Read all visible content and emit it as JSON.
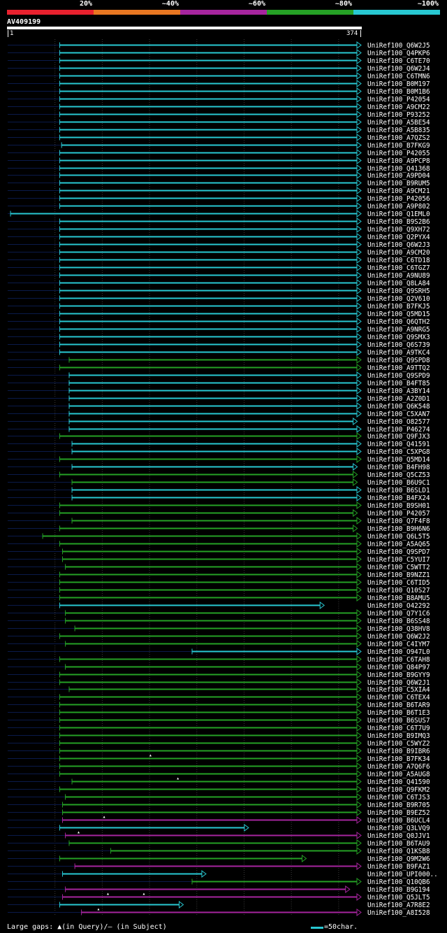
{
  "legend": [
    {
      "label": "20%",
      "color": "#e8212e"
    },
    {
      "label": "~40%",
      "color": "#e87722"
    },
    {
      "label": "~60%",
      "color": "#a6259e"
    },
    {
      "label": "~80%",
      "color": "#25a125"
    },
    {
      "label": "~100%",
      "color": "#28c8d2"
    }
  ],
  "query": {
    "name": "AV409199",
    "start": "1",
    "end": "374"
  },
  "colors": {
    "cyan": "#28c8d2",
    "green": "#25a125",
    "magenta": "#a6259e",
    "navy": "#0a1a4a",
    "grid": "#3a3a3a"
  },
  "chart_data": {
    "type": "alignment",
    "query_length": 374,
    "hits": [
      {
        "name": "UniRef100_Q6W2J5",
        "start": 56,
        "end": 374,
        "identity": "cyan"
      },
      {
        "name": "UniRef100_Q4PKP6",
        "start": 56,
        "end": 374,
        "identity": "cyan"
      },
      {
        "name": "UniRef100_C6TE70",
        "start": 56,
        "end": 374,
        "identity": "cyan"
      },
      {
        "name": "UniRef100_Q6W2J4",
        "start": 56,
        "end": 374,
        "identity": "cyan"
      },
      {
        "name": "UniRef100_C6TMN6",
        "start": 56,
        "end": 374,
        "identity": "cyan"
      },
      {
        "name": "UniRef100_B0M197",
        "start": 56,
        "end": 374,
        "identity": "cyan"
      },
      {
        "name": "UniRef100_B0M1B6",
        "start": 56,
        "end": 374,
        "identity": "cyan"
      },
      {
        "name": "UniRef100_P42054",
        "start": 56,
        "end": 374,
        "identity": "cyan"
      },
      {
        "name": "UniRef100_A9CM22",
        "start": 56,
        "end": 374,
        "identity": "cyan"
      },
      {
        "name": "UniRef100_P93252",
        "start": 56,
        "end": 374,
        "identity": "cyan"
      },
      {
        "name": "UniRef100_A5BE54",
        "start": 56,
        "end": 374,
        "identity": "cyan"
      },
      {
        "name": "UniRef100_A5B835",
        "start": 56,
        "end": 374,
        "identity": "cyan"
      },
      {
        "name": "UniRef100_A7QZS2",
        "start": 56,
        "end": 374,
        "identity": "cyan"
      },
      {
        "name": "UniRef100_B7FKG9",
        "start": 58,
        "end": 374,
        "identity": "cyan"
      },
      {
        "name": "UniRef100_P42055",
        "start": 56,
        "end": 374,
        "identity": "cyan"
      },
      {
        "name": "UniRef100_A9PCP8",
        "start": 56,
        "end": 374,
        "identity": "cyan"
      },
      {
        "name": "UniRef100_Q41368",
        "start": 56,
        "end": 374,
        "identity": "cyan"
      },
      {
        "name": "UniRef100_A9PD04",
        "start": 56,
        "end": 374,
        "identity": "cyan"
      },
      {
        "name": "UniRef100_B9RUM5",
        "start": 56,
        "end": 374,
        "identity": "cyan"
      },
      {
        "name": "UniRef100_A9CM21",
        "start": 56,
        "end": 374,
        "identity": "cyan"
      },
      {
        "name": "UniRef100_P42056",
        "start": 56,
        "end": 374,
        "identity": "cyan"
      },
      {
        "name": "UniRef100_A9P802",
        "start": 56,
        "end": 374,
        "identity": "cyan"
      },
      {
        "name": "UniRef100_Q1EML0",
        "start": 4,
        "end": 374,
        "identity": "cyan"
      },
      {
        "name": "UniRef100_B9S2B6",
        "start": 56,
        "end": 374,
        "identity": "cyan"
      },
      {
        "name": "UniRef100_Q9XH72",
        "start": 56,
        "end": 374,
        "identity": "cyan"
      },
      {
        "name": "UniRef100_Q2PYX4",
        "start": 56,
        "end": 374,
        "identity": "cyan"
      },
      {
        "name": "UniRef100_Q6W2J3",
        "start": 56,
        "end": 374,
        "identity": "cyan"
      },
      {
        "name": "UniRef100_A9CM20",
        "start": 56,
        "end": 374,
        "identity": "cyan"
      },
      {
        "name": "UniRef100_C6TD18",
        "start": 56,
        "end": 374,
        "identity": "cyan"
      },
      {
        "name": "UniRef100_C6TGZ7",
        "start": 56,
        "end": 374,
        "identity": "cyan"
      },
      {
        "name": "UniRef100_A9NU89",
        "start": 56,
        "end": 374,
        "identity": "cyan"
      },
      {
        "name": "UniRef100_Q8LA84",
        "start": 56,
        "end": 374,
        "identity": "cyan"
      },
      {
        "name": "UniRef100_Q9SRH5",
        "start": 56,
        "end": 374,
        "identity": "cyan"
      },
      {
        "name": "UniRef100_Q2V610",
        "start": 56,
        "end": 374,
        "identity": "cyan"
      },
      {
        "name": "UniRef100_B7FKJ5",
        "start": 56,
        "end": 374,
        "identity": "cyan"
      },
      {
        "name": "UniRef100_Q5MD15",
        "start": 56,
        "end": 374,
        "identity": "cyan"
      },
      {
        "name": "UniRef100_Q6QTH2",
        "start": 56,
        "end": 374,
        "identity": "cyan"
      },
      {
        "name": "UniRef100_A9NRG5",
        "start": 56,
        "end": 374,
        "identity": "cyan"
      },
      {
        "name": "UniRef100_Q9SMX3",
        "start": 56,
        "end": 374,
        "identity": "cyan"
      },
      {
        "name": "UniRef100_Q6S739",
        "start": 56,
        "end": 374,
        "identity": "cyan"
      },
      {
        "name": "UniRef100_A9TKC4",
        "start": 56,
        "end": 374,
        "identity": "cyan"
      },
      {
        "name": "UniRef100_Q9SPD8",
        "start": 66,
        "end": 374,
        "identity": "green"
      },
      {
        "name": "UniRef100_A9TTQ2",
        "start": 56,
        "end": 374,
        "identity": "green"
      },
      {
        "name": "UniRef100_Q9SPD9",
        "start": 66,
        "end": 374,
        "identity": "cyan"
      },
      {
        "name": "UniRef100_B4FT85",
        "start": 66,
        "end": 374,
        "identity": "cyan"
      },
      {
        "name": "UniRef100_A3BY14",
        "start": 66,
        "end": 374,
        "identity": "cyan"
      },
      {
        "name": "UniRef100_A2Z0D1",
        "start": 66,
        "end": 374,
        "identity": "cyan"
      },
      {
        "name": "UniRef100_Q6K548",
        "start": 66,
        "end": 374,
        "identity": "cyan"
      },
      {
        "name": "UniRef100_C5XAN7",
        "start": 66,
        "end": 374,
        "identity": "cyan"
      },
      {
        "name": "UniRef100_O82577",
        "start": 66,
        "end": 370,
        "identity": "cyan"
      },
      {
        "name": "UniRef100_P46274",
        "start": 66,
        "end": 374,
        "identity": "cyan"
      },
      {
        "name": "UniRef100_Q9FJX3",
        "start": 56,
        "end": 374,
        "identity": "green"
      },
      {
        "name": "UniRef100_Q41591",
        "start": 69,
        "end": 374,
        "identity": "cyan"
      },
      {
        "name": "UniRef100_C5XPG8",
        "start": 69,
        "end": 374,
        "identity": "cyan"
      },
      {
        "name": "UniRef100_Q5MD14",
        "start": 56,
        "end": 374,
        "identity": "green"
      },
      {
        "name": "UniRef100_B4FH98",
        "start": 69,
        "end": 370,
        "identity": "cyan"
      },
      {
        "name": "UniRef100_Q5CZ53",
        "start": 56,
        "end": 370,
        "identity": "green"
      },
      {
        "name": "UniRef100_B6U9C1",
        "start": 69,
        "end": 370,
        "identity": "green"
      },
      {
        "name": "UniRef100_B6SLD1",
        "start": 69,
        "end": 374,
        "identity": "cyan"
      },
      {
        "name": "UniRef100_B4FX24",
        "start": 69,
        "end": 374,
        "identity": "cyan"
      },
      {
        "name": "UniRef100_B9SH01",
        "start": 56,
        "end": 374,
        "identity": "green"
      },
      {
        "name": "UniRef100_P42057",
        "start": 56,
        "end": 370,
        "identity": "green"
      },
      {
        "name": "UniRef100_Q7F4F8",
        "start": 69,
        "end": 374,
        "identity": "green"
      },
      {
        "name": "UniRef100_B9H6N6",
        "start": 56,
        "end": 370,
        "identity": "green"
      },
      {
        "name": "UniRef100_Q6L5T5",
        "start": 38,
        "end": 374,
        "identity": "green"
      },
      {
        "name": "UniRef100_A5AQ65",
        "start": 56,
        "end": 374,
        "identity": "green"
      },
      {
        "name": "UniRef100_Q9SPD7",
        "start": 59,
        "end": 374,
        "identity": "green"
      },
      {
        "name": "UniRef100_C5YUI7",
        "start": 59,
        "end": 374,
        "identity": "green"
      },
      {
        "name": "UniRef100_C5WTT2",
        "start": 62,
        "end": 374,
        "identity": "green"
      },
      {
        "name": "UniRef100_B9NZZ1",
        "start": 56,
        "end": 374,
        "identity": "green"
      },
      {
        "name": "UniRef100_C6TID5",
        "start": 56,
        "end": 374,
        "identity": "green"
      },
      {
        "name": "UniRef100_Q10S27",
        "start": 56,
        "end": 374,
        "identity": "green"
      },
      {
        "name": "UniRef100_B8AMU5",
        "start": 56,
        "end": 374,
        "identity": "green"
      },
      {
        "name": "UniRef100_O42292",
        "start": 56,
        "end": 335,
        "identity": "cyan"
      },
      {
        "name": "UniRef100_Q7Y1C6",
        "start": 62,
        "end": 374,
        "identity": "green"
      },
      {
        "name": "UniRef100_B6SS48",
        "start": 62,
        "end": 374,
        "identity": "green"
      },
      {
        "name": "UniRef100_Q38HV8",
        "start": 72,
        "end": 374,
        "identity": "green"
      },
      {
        "name": "UniRef100_Q6W2J2",
        "start": 56,
        "end": 374,
        "identity": "green"
      },
      {
        "name": "UniRef100_C4IYM7",
        "start": 62,
        "end": 374,
        "identity": "green"
      },
      {
        "name": "UniRef100_O947L0",
        "start": 196,
        "end": 374,
        "identity": "cyan"
      },
      {
        "name": "UniRef100_C6TAH8",
        "start": 56,
        "end": 374,
        "identity": "green"
      },
      {
        "name": "UniRef100_Q84P97",
        "start": 62,
        "end": 374,
        "identity": "green"
      },
      {
        "name": "UniRef100_B9GYY9",
        "start": 56,
        "end": 374,
        "identity": "green"
      },
      {
        "name": "UniRef100_Q6W2J1",
        "start": 56,
        "end": 374,
        "identity": "green"
      },
      {
        "name": "UniRef100_C5XIA4",
        "start": 66,
        "end": 374,
        "identity": "green"
      },
      {
        "name": "UniRef100_C6TEX4",
        "start": 56,
        "end": 374,
        "identity": "green"
      },
      {
        "name": "UniRef100_B6TAR9",
        "start": 56,
        "end": 374,
        "identity": "green"
      },
      {
        "name": "UniRef100_B6T1E3",
        "start": 56,
        "end": 374,
        "identity": "green"
      },
      {
        "name": "UniRef100_B6SUS7",
        "start": 56,
        "end": 374,
        "identity": "green"
      },
      {
        "name": "UniRef100_C6T7U9",
        "start": 56,
        "end": 374,
        "identity": "green"
      },
      {
        "name": "UniRef100_B9IMQ3",
        "start": 56,
        "end": 374,
        "identity": "green"
      },
      {
        "name": "UniRef100_C5WYZ2",
        "start": 56,
        "end": 374,
        "identity": "green"
      },
      {
        "name": "UniRef100_B9IBR6",
        "start": 56,
        "end": 374,
        "identity": "green"
      },
      {
        "name": "UniRef100_B7FK34",
        "start": 56,
        "end": 374,
        "identity": "green",
        "gap_query": 152
      },
      {
        "name": "UniRef100_A7Q6F6",
        "start": 56,
        "end": 374,
        "identity": "green"
      },
      {
        "name": "UniRef100_A5AUG8",
        "start": 56,
        "end": 374,
        "identity": "green"
      },
      {
        "name": "UniRef100_Q41590",
        "start": 69,
        "end": 374,
        "identity": "green",
        "gap_query": 181
      },
      {
        "name": "UniRef100_Q9FKM2",
        "start": 56,
        "end": 374,
        "identity": "green"
      },
      {
        "name": "UniRef100_C6TJS3",
        "start": 62,
        "end": 374,
        "identity": "green"
      },
      {
        "name": "UniRef100_B9R705",
        "start": 59,
        "end": 374,
        "identity": "green"
      },
      {
        "name": "UniRef100_B9EZ52",
        "start": 59,
        "end": 374,
        "identity": "green"
      },
      {
        "name": "UniRef100_B6UCL4",
        "start": 59,
        "end": 374,
        "identity": "magenta",
        "gap_query": 103
      },
      {
        "name": "UniRef100_Q3LVQ9",
        "start": 56,
        "end": 255,
        "identity": "cyan"
      },
      {
        "name": "UniRef100_Q0JJV1",
        "start": 62,
        "end": 374,
        "identity": "magenta",
        "gap_query": 76
      },
      {
        "name": "UniRef100_B6TAU9",
        "start": 66,
        "end": 374,
        "identity": "green"
      },
      {
        "name": "UniRef100_Q1KSB8",
        "start": 110,
        "end": 374,
        "identity": "green"
      },
      {
        "name": "UniRef100_Q9M2W6",
        "start": 56,
        "end": 316,
        "identity": "green"
      },
      {
        "name": "UniRef100_B9FAZ1",
        "start": 72,
        "end": 374,
        "identity": "magenta"
      },
      {
        "name": "UniRef100_UPI000..",
        "start": 59,
        "end": 210,
        "identity": "cyan"
      },
      {
        "name": "UniRef100_Q10QB6",
        "start": 196,
        "end": 374,
        "identity": "green"
      },
      {
        "name": "UniRef100_B9G194",
        "start": 62,
        "end": 362,
        "identity": "magenta"
      },
      {
        "name": "UniRef100_Q5JLT5",
        "start": 59,
        "end": 374,
        "identity": "magenta",
        "gap_query": [
          107,
          145
        ]
      },
      {
        "name": "UniRef100_A7R8E2",
        "start": 56,
        "end": 186,
        "identity": "cyan"
      },
      {
        "name": "UniRef100_A8I528",
        "start": 79,
        "end": 374,
        "identity": "magenta",
        "gap_query": 97
      }
    ]
  },
  "footer": {
    "gaps_text": "Large gaps: ▲(in Query)/– (in Subject)",
    "scale_text": "=50char."
  }
}
